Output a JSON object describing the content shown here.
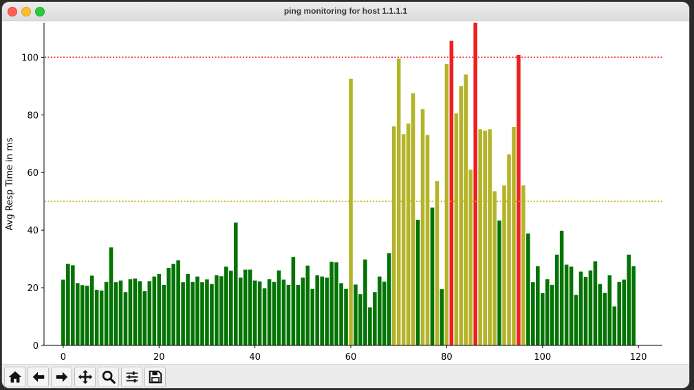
{
  "window": {
    "title": "ping monitoring for host 1.1.1.1"
  },
  "colors": {
    "green": "#037303",
    "olive": "#b4b42a",
    "red": "#ee2020",
    "thresh_low": "#c8b414",
    "thresh_high": "#ee2020"
  },
  "toolbar": {
    "buttons": [
      {
        "name": "home-button",
        "icon": "home-icon"
      },
      {
        "name": "back-button",
        "icon": "arrow-left-icon"
      },
      {
        "name": "forward-button",
        "icon": "arrow-right-icon"
      },
      {
        "name": "pan-button",
        "icon": "move-icon"
      },
      {
        "name": "zoom-button",
        "icon": "magnifier-icon"
      },
      {
        "name": "configure-subplots-button",
        "icon": "sliders-icon"
      },
      {
        "name": "save-button",
        "icon": "floppy-disk-icon"
      }
    ]
  },
  "chart_data": {
    "type": "bar",
    "title": "",
    "xlabel": "",
    "ylabel": "Avg Resp Time in ms",
    "xlim": [
      -4,
      125
    ],
    "ylim": [
      0,
      112
    ],
    "xticks": [
      0,
      20,
      40,
      60,
      80,
      100,
      120
    ],
    "yticks": [
      0,
      20,
      40,
      60,
      80,
      100
    ],
    "thresholds": [
      {
        "value": 100,
        "color": "#ee2020",
        "style": "dotted"
      },
      {
        "value": 50,
        "color": "#c8b414",
        "style": "dotted"
      }
    ],
    "color_rule": "green below 50, olive 50-100, red above 100",
    "x": [
      0,
      1,
      2,
      3,
      4,
      5,
      6,
      7,
      8,
      9,
      10,
      11,
      12,
      13,
      14,
      15,
      16,
      17,
      18,
      19,
      20,
      21,
      22,
      23,
      24,
      25,
      26,
      27,
      28,
      29,
      30,
      31,
      32,
      33,
      34,
      35,
      36,
      37,
      38,
      39,
      40,
      41,
      42,
      43,
      44,
      45,
      46,
      47,
      48,
      49,
      50,
      51,
      52,
      53,
      54,
      55,
      56,
      57,
      58,
      59,
      60,
      61,
      62,
      63,
      64,
      65,
      66,
      67,
      68,
      69,
      70,
      71,
      72,
      73,
      74,
      75,
      76,
      77,
      78,
      79,
      80,
      81,
      82,
      83,
      84,
      85,
      86,
      87,
      88,
      89,
      90,
      91,
      92,
      93,
      94,
      95,
      96,
      97,
      98,
      99,
      100,
      101,
      102,
      103,
      104,
      105,
      106,
      107,
      108,
      109,
      110,
      111,
      112,
      113,
      114,
      115,
      116,
      117,
      118,
      119
    ],
    "values": [
      22.8,
      28.3,
      27.8,
      21.6,
      20.9,
      20.7,
      24.2,
      19.3,
      19.0,
      22.0,
      34.0,
      21.9,
      22.5,
      18.5,
      23.0,
      23.2,
      22.3,
      18.8,
      22.3,
      23.9,
      24.8,
      21.0,
      26.9,
      28.3,
      29.5,
      21.9,
      24.8,
      22.0,
      23.9,
      21.9,
      22.9,
      21.3,
      24.3,
      24.0,
      27.3,
      25.9,
      42.6,
      23.5,
      26.3,
      26.3,
      22.5,
      22.2,
      19.8,
      23.0,
      22.0,
      26.0,
      22.8,
      21.0,
      30.7,
      21.0,
      23.5,
      27.7,
      19.6,
      24.3,
      23.9,
      23.5,
      29.0,
      28.8,
      21.6,
      19.6,
      92.5,
      21.1,
      17.8,
      29.8,
      13.2,
      18.5,
      23.9,
      22.1,
      32.0,
      76.0,
      99.5,
      73.3,
      77.0,
      87.5,
      43.6,
      82.0,
      73.0,
      47.8,
      57.0,
      19.5,
      97.7,
      105.7,
      80.5,
      90.0,
      94.0,
      61.0,
      112.0,
      75.0,
      74.5,
      75.0,
      53.5,
      43.3,
      55.5,
      66.3,
      75.8,
      100.8,
      55.5,
      38.8,
      21.9,
      27.5,
      18.1,
      23.0,
      21.0,
      31.5,
      39.8,
      28.0,
      27.3,
      17.5,
      25.6,
      23.8,
      26.0,
      29.2,
      21.3,
      18.2,
      24.3,
      13.5,
      22.0,
      22.8,
      31.5,
      27.5
    ]
  }
}
